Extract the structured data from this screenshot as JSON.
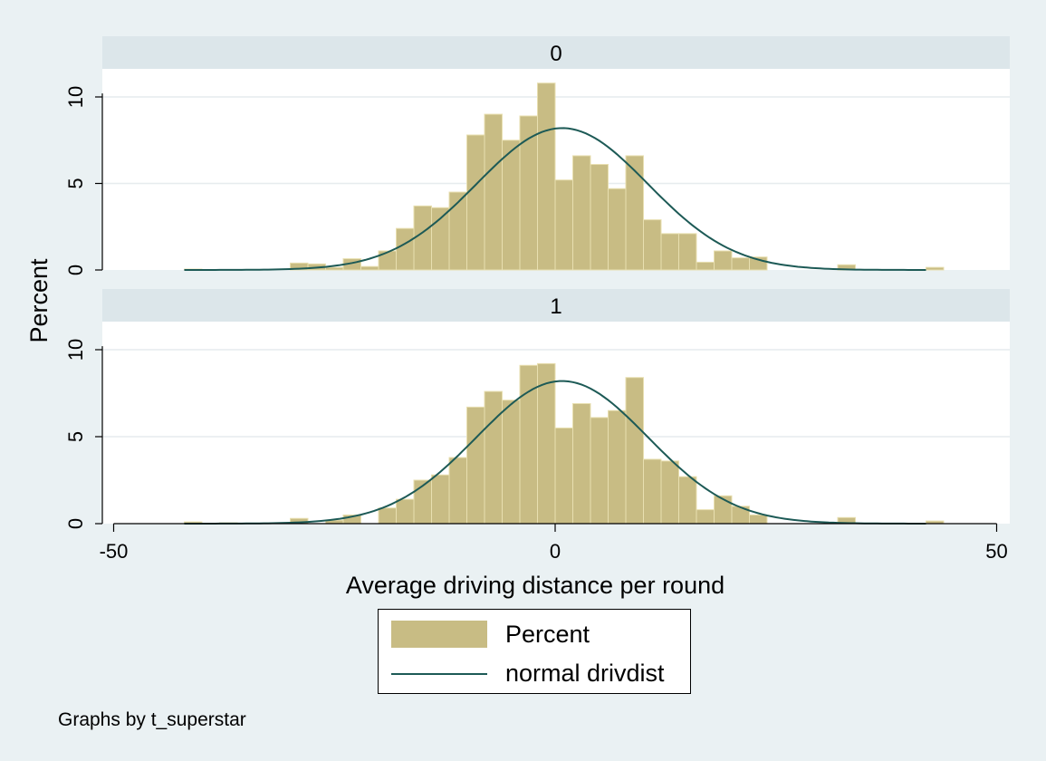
{
  "chart_data": {
    "type": "bar",
    "title": "",
    "xlabel": "Average driving distance per round",
    "ylabel": "Percent",
    "xlim": [
      -52,
      51
    ],
    "ylim": [
      0,
      10.8
    ],
    "xticks": [
      -50,
      0,
      50
    ],
    "yticks": [
      0,
      5,
      10
    ],
    "bin_width": 2,
    "grid": true,
    "legend_placement": "bottom",
    "note": "Graphs by t_superstar",
    "colors": {
      "bars": "#c8bc84",
      "bar_edge": "#e8dfb0",
      "curve": "#1d5a56",
      "strip": "#dce6ea",
      "background": "#eaf1f3",
      "plot": "#ffffff"
    },
    "legend": [
      {
        "label": "Percent",
        "kind": "bar"
      },
      {
        "label": "normal drivdist",
        "kind": "line"
      }
    ],
    "panels": [
      {
        "label": "0",
        "bins": [
          {
            "x": -42,
            "v": 0.05
          },
          {
            "x": -30,
            "v": 0.4
          },
          {
            "x": -28,
            "v": 0.35
          },
          {
            "x": -26,
            "v": 0.15
          },
          {
            "x": -24,
            "v": 0.65
          },
          {
            "x": -22,
            "v": 0.2
          },
          {
            "x": -20,
            "v": 1.1
          },
          {
            "x": -18,
            "v": 2.4
          },
          {
            "x": -16,
            "v": 3.7
          },
          {
            "x": -14,
            "v": 3.6
          },
          {
            "x": -12,
            "v": 4.5
          },
          {
            "x": -10,
            "v": 7.8
          },
          {
            "x": -8,
            "v": 9.0
          },
          {
            "x": -6,
            "v": 7.5
          },
          {
            "x": -4,
            "v": 8.9
          },
          {
            "x": -2,
            "v": 10.8
          },
          {
            "x": 0,
            "v": 5.2
          },
          {
            "x": 2,
            "v": 6.6
          },
          {
            "x": 4,
            "v": 6.1
          },
          {
            "x": 6,
            "v": 4.7
          },
          {
            "x": 8,
            "v": 6.6
          },
          {
            "x": 10,
            "v": 2.9
          },
          {
            "x": 12,
            "v": 2.1
          },
          {
            "x": 14,
            "v": 2.1
          },
          {
            "x": 16,
            "v": 0.45
          },
          {
            "x": 18,
            "v": 1.1
          },
          {
            "x": 20,
            "v": 0.7
          },
          {
            "x": 22,
            "v": 0.75
          },
          {
            "x": 32,
            "v": 0.3
          },
          {
            "x": 42,
            "v": 0.15
          }
        ],
        "normal": {
          "mean": 0.8,
          "sd": 9.7,
          "peak": 8.2
        }
      },
      {
        "label": "1",
        "bins": [
          {
            "x": -42,
            "v": 0.1
          },
          {
            "x": -38,
            "v": 0.05
          },
          {
            "x": -30,
            "v": 0.3
          },
          {
            "x": -26,
            "v": 0.2
          },
          {
            "x": -24,
            "v": 0.5
          },
          {
            "x": -20,
            "v": 0.9
          },
          {
            "x": -18,
            "v": 1.4
          },
          {
            "x": -16,
            "v": 2.5
          },
          {
            "x": -14,
            "v": 2.8
          },
          {
            "x": -12,
            "v": 3.8
          },
          {
            "x": -10,
            "v": 6.7
          },
          {
            "x": -8,
            "v": 7.6
          },
          {
            "x": -6,
            "v": 7.1
          },
          {
            "x": -4,
            "v": 9.1
          },
          {
            "x": -2,
            "v": 9.2
          },
          {
            "x": 0,
            "v": 5.5
          },
          {
            "x": 2,
            "v": 6.9
          },
          {
            "x": 4,
            "v": 6.1
          },
          {
            "x": 6,
            "v": 6.5
          },
          {
            "x": 8,
            "v": 8.4
          },
          {
            "x": 10,
            "v": 3.7
          },
          {
            "x": 12,
            "v": 3.6
          },
          {
            "x": 14,
            "v": 2.7
          },
          {
            "x": 16,
            "v": 0.8
          },
          {
            "x": 18,
            "v": 1.6
          },
          {
            "x": 20,
            "v": 1.0
          },
          {
            "x": 22,
            "v": 0.5
          },
          {
            "x": 32,
            "v": 0.35
          },
          {
            "x": 42,
            "v": 0.15
          }
        ],
        "normal": {
          "mean": 0.8,
          "sd": 9.7,
          "peak": 8.2
        }
      }
    ]
  }
}
